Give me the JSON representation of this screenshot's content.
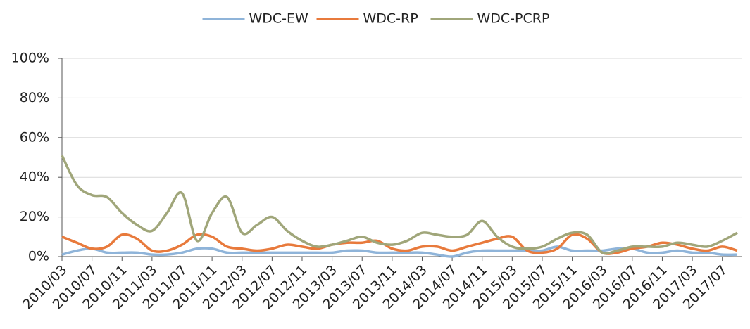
{
  "chart_data": {
    "type": "line",
    "categories": [
      "2010/03",
      null,
      "2010/07",
      null,
      "2010/11",
      null,
      "2011/03",
      null,
      "2011/07",
      null,
      "2011/11",
      null,
      "2012/03",
      null,
      "2012/07",
      null,
      "2012/11",
      null,
      "2013/03",
      null,
      "2013/07",
      null,
      "2013/11",
      null,
      "2014/03",
      null,
      "2014/07",
      null,
      "2014/11",
      null,
      "2015/03",
      null,
      "2015/07",
      null,
      "2015/11",
      null,
      "2016/03",
      null,
      "2016/07",
      null,
      "2016/11",
      null,
      "2017/03",
      null,
      "2017/07",
      null
    ],
    "series": [
      {
        "name": "WDC-EW",
        "color": "#8fb4d9",
        "values": [
          1,
          3,
          4,
          2,
          2,
          2,
          1,
          1,
          2,
          4,
          4,
          2,
          2,
          2,
          2,
          2,
          2,
          2,
          2,
          3,
          3,
          2,
          2,
          2,
          2,
          1,
          0,
          2,
          3,
          3,
          3,
          3,
          3,
          5,
          3,
          3,
          3,
          4,
          4,
          2,
          2,
          3,
          2,
          2,
          1,
          1
        ]
      },
      {
        "name": "WDC-RP",
        "color": "#e87a3c",
        "values": [
          10,
          7,
          4,
          5,
          11,
          9,
          3,
          3,
          6,
          11,
          10,
          5,
          4,
          3,
          4,
          6,
          5,
          4,
          6,
          7,
          7,
          8,
          4,
          3,
          5,
          5,
          3,
          5,
          7,
          9,
          10,
          3,
          2,
          4,
          11,
          9,
          2,
          2,
          4,
          5,
          7,
          6,
          4,
          3,
          5,
          3
        ]
      },
      {
        "name": "WDC-PCRP",
        "color": "#a0a67a",
        "values": [
          51,
          36,
          31,
          30,
          22,
          16,
          13,
          22,
          32,
          8,
          22,
          30,
          12,
          16,
          20,
          13,
          8,
          5,
          6,
          8,
          10,
          7,
          6,
          8,
          12,
          11,
          10,
          11,
          18,
          10,
          5,
          4,
          5,
          9,
          12,
          11,
          2,
          3,
          5,
          5,
          5,
          7,
          6,
          5,
          8,
          12
        ]
      }
    ],
    "ylim": [
      0,
      100
    ],
    "yticks": [
      {
        "value": 0,
        "label": "0%"
      },
      {
        "value": 20,
        "label": "20%"
      },
      {
        "value": 40,
        "label": "40%"
      },
      {
        "value": 60,
        "label": "60%"
      },
      {
        "value": 80,
        "label": "80%"
      },
      {
        "value": 100,
        "label": "100%"
      }
    ],
    "grid": true,
    "legend": "top"
  }
}
